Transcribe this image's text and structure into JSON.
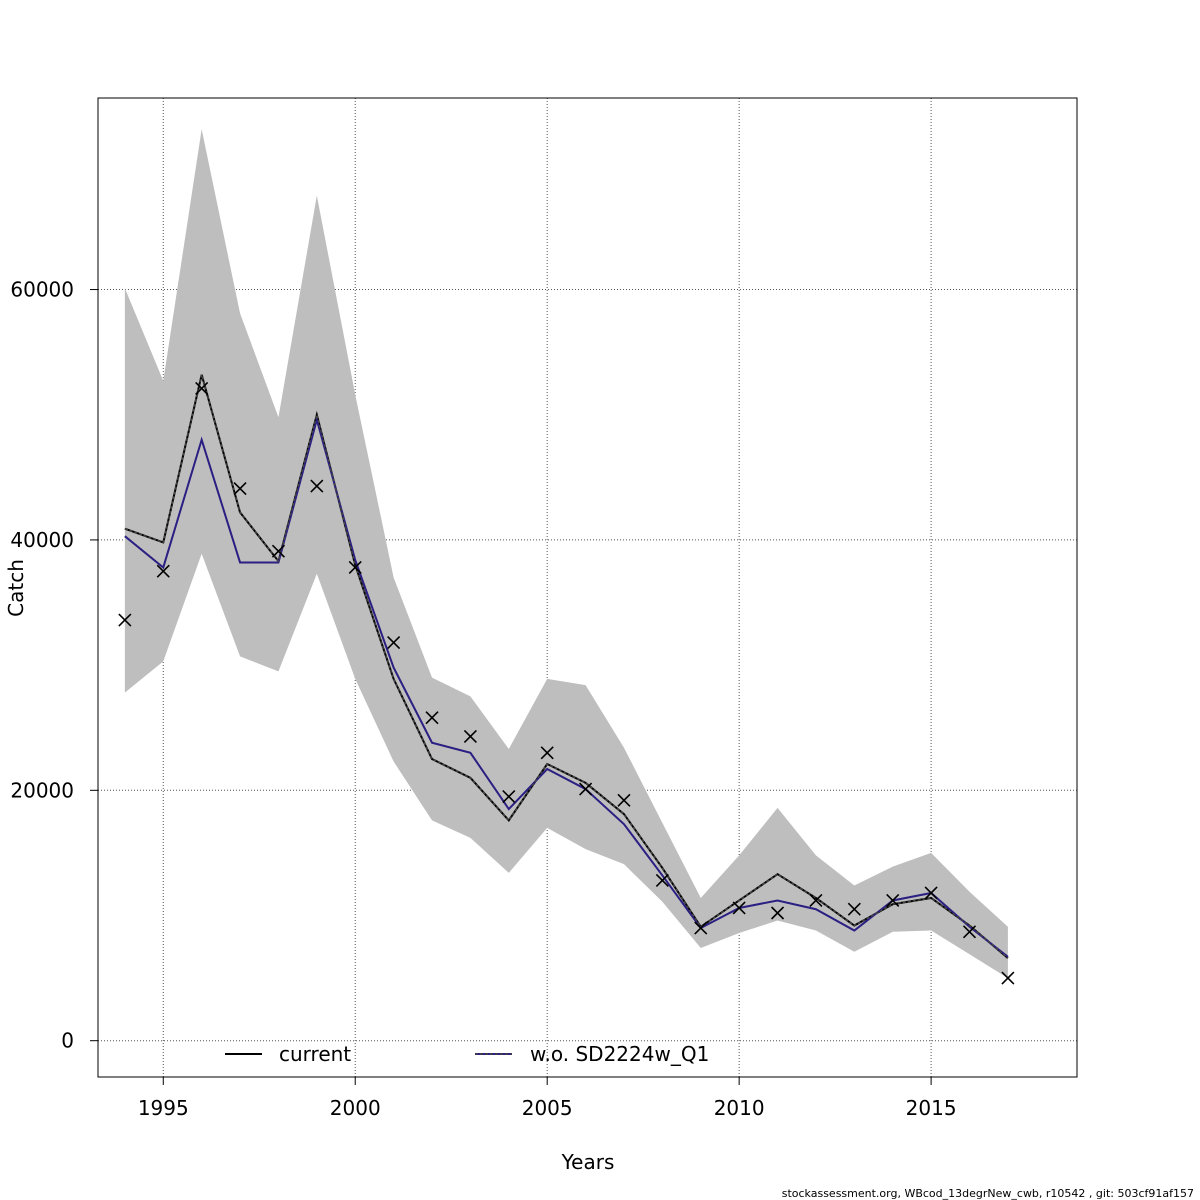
{
  "chart_data": {
    "type": "line",
    "xlabel": "Years",
    "ylabel": "Catch",
    "xlim": [
      1993.3,
      2018.8
    ],
    "ylim": [
      -2900,
      75300
    ],
    "x_ticks": [
      1995,
      2000,
      2005,
      2010,
      2015
    ],
    "y_ticks": [
      0,
      20000,
      40000,
      60000
    ],
    "grid": true,
    "legend_position": "bottom",
    "x": [
      1994,
      1995,
      1996,
      1997,
      1998,
      1999,
      2000,
      2001,
      2002,
      2003,
      2004,
      2005,
      2006,
      2007,
      2008,
      2009,
      2010,
      2011,
      2012,
      2013,
      2014,
      2015,
      2016,
      2017
    ],
    "band": {
      "upper": [
        60100,
        52700,
        72800,
        58100,
        49800,
        67500,
        51600,
        37000,
        29000,
        27500,
        23300,
        28900,
        28400,
        23400,
        17400,
        11400,
        14800,
        18600,
        14800,
        12400,
        13900,
        15000,
        11900,
        9100
      ],
      "lower": [
        27800,
        30300,
        38900,
        30700,
        29500,
        37300,
        28900,
        22300,
        17600,
        16200,
        13400,
        17000,
        15300,
        14100,
        11100,
        7400,
        8600,
        9600,
        8800,
        7100,
        8700,
        8800,
        6900,
        5000
      ]
    },
    "series": [
      {
        "name": "current",
        "color": "#000000",
        "values": [
          40900,
          39800,
          53200,
          42200,
          38300,
          50000,
          38000,
          28900,
          22500,
          21000,
          17600,
          22100,
          20600,
          18100,
          13800,
          9100,
          11200,
          13300,
          11400,
          9200,
          10900,
          11400,
          9200,
          6600
        ]
      },
      {
        "name": "w.o. SD2224w_Q1",
        "color": "#2a1f82",
        "values": [
          40300,
          37800,
          48000,
          38200,
          38200,
          49600,
          38400,
          29800,
          23800,
          23000,
          18500,
          21700,
          20100,
          17300,
          13200,
          9000,
          10600,
          11200,
          10500,
          8800,
          11200,
          11800,
          9100,
          6700
        ]
      }
    ],
    "observed": [
      33600,
      37500,
      52100,
      44100,
      39100,
      44300,
      37800,
      31800,
      25800,
      24300,
      19500,
      23000,
      20100,
      19200,
      12800,
      9000,
      10600,
      10200,
      11200,
      10500,
      11200,
      11800,
      8700,
      5000
    ]
  },
  "footer": "stockassessment.org, WBcod_13degrNew_cwb, r10542 , git: 503cf91af157"
}
